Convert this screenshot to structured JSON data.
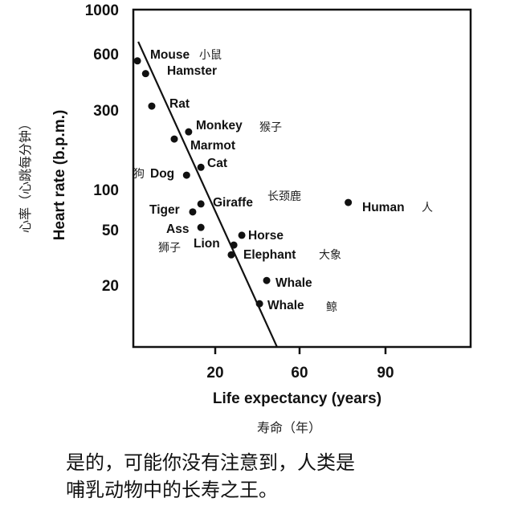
{
  "chart_data": {
    "type": "scatter",
    "title": "",
    "xlabel": "Life expectancy (years)",
    "xlabel_cn": "寿命（年）",
    "ylabel": "Heart rate (b.p.m.)",
    "ylabel_cn": "心率（心跳每分钟）",
    "y_scale": "log",
    "x_ticks": [
      20,
      60,
      90
    ],
    "y_ticks": [
      1000,
      600,
      300,
      100,
      50,
      20
    ],
    "ylim": [
      7,
      1000
    ],
    "grid": false,
    "legend": "none",
    "points": [
      {
        "label": "Mouse",
        "label_cn": "小鼠",
        "x": 1,
        "y": 550
      },
      {
        "label": "Hamster",
        "label_cn": "",
        "x": 3,
        "y": 470
      },
      {
        "label": "Rat",
        "label_cn": "",
        "x": 4.5,
        "y": 315
      },
      {
        "label": "Monkey",
        "label_cn": "猴子",
        "x": 13.5,
        "y": 222
      },
      {
        "label": "Marmot",
        "label_cn": "",
        "x": 10,
        "y": 201
      },
      {
        "label": "Cat",
        "label_cn": "",
        "x": 16.5,
        "y": 136
      },
      {
        "label": "Dog",
        "label_cn": "狗",
        "x": 13,
        "y": 122
      },
      {
        "label": "Giraffe",
        "label_cn": "长颈鹿",
        "x": 16.5,
        "y": 78
      },
      {
        "label": "Tiger",
        "label_cn": "",
        "x": 14.5,
        "y": 68
      },
      {
        "label": "Ass",
        "label_cn": "",
        "x": 16.5,
        "y": 52
      },
      {
        "label": "Horse",
        "label_cn": "",
        "x": 32.6,
        "y": 45.6
      },
      {
        "label": "Lion",
        "label_cn": "狮子",
        "x": 28.8,
        "y": 38.8
      },
      {
        "label": "Elephant",
        "label_cn": "大象",
        "x": 27.6,
        "y": 33
      },
      {
        "label": "Whale",
        "label_cn": "",
        "x": 44.4,
        "y": 21.6
      },
      {
        "label": "Whale",
        "label_cn": "鲸",
        "x": 41,
        "y": 14.7
      },
      {
        "label": "Human",
        "label_cn": "人",
        "x": 77,
        "y": 80
      }
    ],
    "trend_line": {
      "x": [
        1.2,
        49.3
      ],
      "y": [
        690,
        7.2
      ]
    }
  },
  "caption": {
    "line1": "是的，可能你没有注意到，人类是",
    "line2": "哺乳动物中的长寿之王。"
  }
}
